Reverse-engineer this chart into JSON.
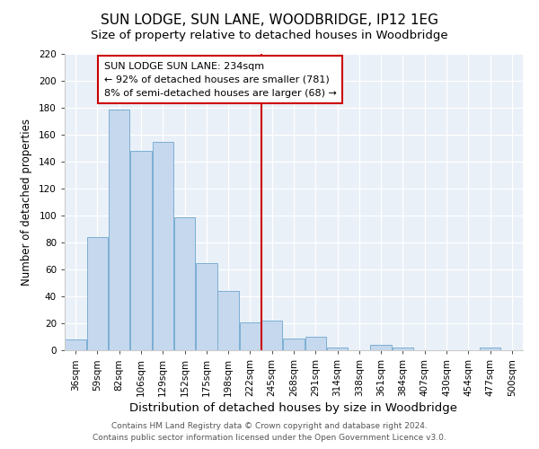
{
  "title": "SUN LODGE, SUN LANE, WOODBRIDGE, IP12 1EG",
  "subtitle": "Size of property relative to detached houses in Woodbridge",
  "xlabel": "Distribution of detached houses by size in Woodbridge",
  "ylabel": "Number of detached properties",
  "bar_labels": [
    "36sqm",
    "59sqm",
    "82sqm",
    "106sqm",
    "129sqm",
    "152sqm",
    "175sqm",
    "198sqm",
    "222sqm",
    "245sqm",
    "268sqm",
    "291sqm",
    "314sqm",
    "338sqm",
    "361sqm",
    "384sqm",
    "407sqm",
    "430sqm",
    "454sqm",
    "477sqm",
    "500sqm"
  ],
  "bar_values": [
    8,
    84,
    179,
    148,
    155,
    99,
    65,
    44,
    21,
    22,
    9,
    10,
    2,
    0,
    4,
    2,
    0,
    0,
    0,
    2,
    0
  ],
  "bar_color": "#c5d8ed",
  "bar_edge_color": "#7bafd4",
  "reference_line_label": "SUN LODGE SUN LANE: 234sqm",
  "annotation_line1": "← 92% of detached houses are smaller (781)",
  "annotation_line2": "8% of semi-detached houses are larger (68) →",
  "annotation_box_color": "#ffffff",
  "annotation_box_edge": "#cc0000",
  "ref_line_color": "#cc0000",
  "footer1": "Contains HM Land Registry data © Crown copyright and database right 2024.",
  "footer2": "Contains public sector information licensed under the Open Government Licence v3.0.",
  "ylim": [
    0,
    220
  ],
  "yticks": [
    0,
    20,
    40,
    60,
    80,
    100,
    120,
    140,
    160,
    180,
    200,
    220
  ],
  "title_fontsize": 11,
  "subtitle_fontsize": 9.5,
  "xlabel_fontsize": 9.5,
  "ylabel_fontsize": 8.5,
  "tick_fontsize": 7.5,
  "annotation_fontsize": 8.0,
  "footer_fontsize": 6.5,
  "background_color": "#ffffff",
  "plot_bg_color": "#eaf0f8"
}
